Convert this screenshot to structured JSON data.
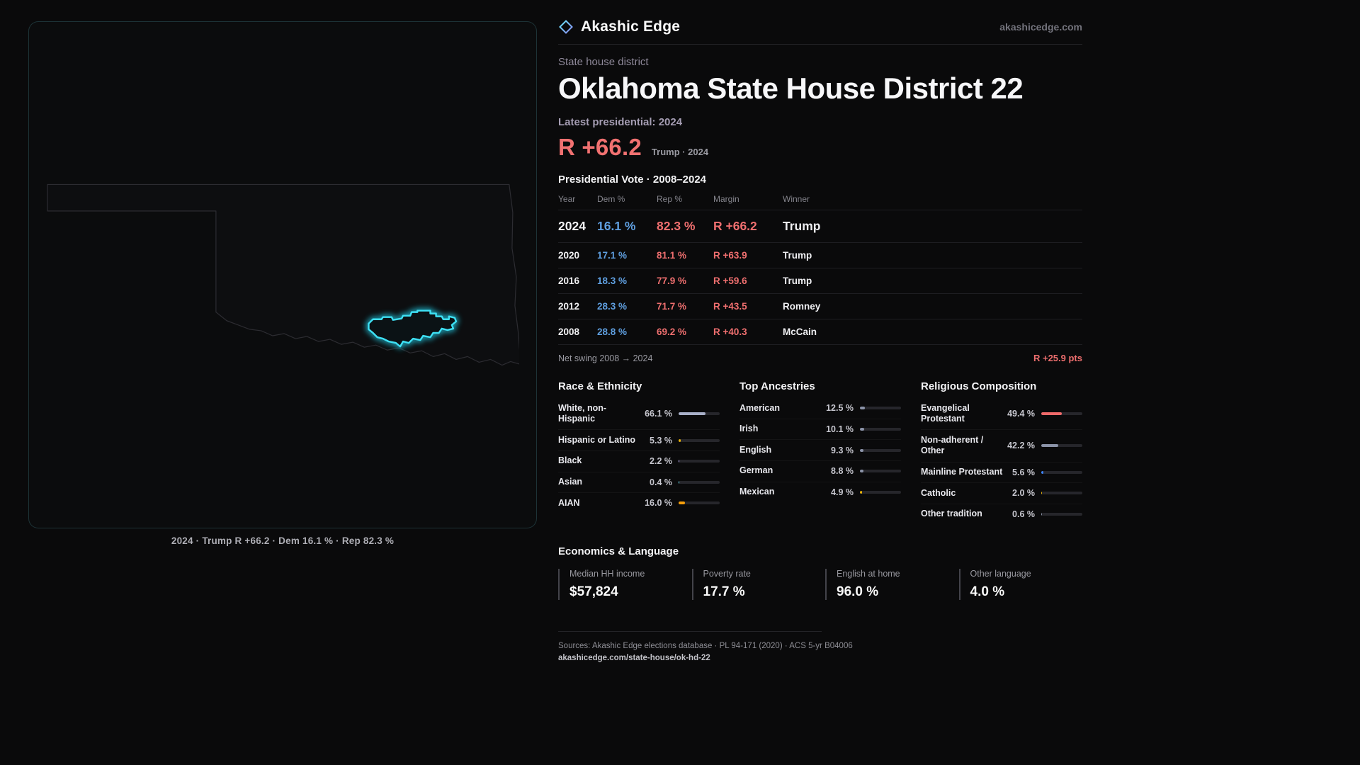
{
  "brand": {
    "name": "Akashic Edge",
    "domain": "akashicedge.com",
    "logo": "diamond-icon"
  },
  "page": {
    "eyebrow": "State house district",
    "title": "Oklahoma State House District 22",
    "latest_label": "Latest presidential: 2024",
    "headline_margin": "R +66.2",
    "headline_context": "Trump · 2024"
  },
  "map": {
    "caption": "2024 · Trump R +66.2 · Dem 16.1 % · Rep 82.3 %",
    "district_color": "#22d3ee"
  },
  "vote_table": {
    "title": "Presidential Vote · 2008–2024",
    "columns": [
      "Year",
      "Dem %",
      "Rep %",
      "Margin",
      "Winner"
    ],
    "rows": [
      {
        "year": "2024",
        "dem": "16.1 %",
        "rep": "82.3 %",
        "margin": "R +66.2",
        "winner": "Trump",
        "highlight": true
      },
      {
        "year": "2020",
        "dem": "17.1 %",
        "rep": "81.1 %",
        "margin": "R +63.9",
        "winner": "Trump"
      },
      {
        "year": "2016",
        "dem": "18.3 %",
        "rep": "77.9 %",
        "margin": "R +59.6",
        "winner": "Trump"
      },
      {
        "year": "2012",
        "dem": "28.3 %",
        "rep": "71.7 %",
        "margin": "R +43.5",
        "winner": "Romney"
      },
      {
        "year": "2008",
        "dem": "28.8 %",
        "rep": "69.2 %",
        "margin": "R +40.3",
        "winner": "McCain"
      }
    ],
    "net_swing_label": "Net swing 2008 → 2024",
    "net_swing_value": "R +25.9 pts"
  },
  "demographics": {
    "sections": [
      {
        "title": "Race & Ethnicity",
        "items": [
          {
            "label": "White, non-Hispanic",
            "value": "66.1 %",
            "pct": 66.1,
            "color": "#a8b0c8"
          },
          {
            "label": "Hispanic or Latino",
            "value": "5.3 %",
            "pct": 5.3,
            "color": "#eab308"
          },
          {
            "label": "Black",
            "value": "2.2 %",
            "pct": 2.2,
            "color": "#c4b5fd"
          },
          {
            "label": "Asian",
            "value": "0.4 %",
            "pct": 0.4,
            "color": "#67e8f9"
          },
          {
            "label": "AIAN",
            "value": "16.0 %",
            "pct": 16.0,
            "color": "#f59e0b"
          }
        ]
      },
      {
        "title": "Top Ancestries",
        "items": [
          {
            "label": "American",
            "value": "12.5 %",
            "pct": 12.5,
            "color": "#8b93a8"
          },
          {
            "label": "Irish",
            "value": "10.1 %",
            "pct": 10.1,
            "color": "#8b93a8"
          },
          {
            "label": "English",
            "value": "9.3 %",
            "pct": 9.3,
            "color": "#8b93a8"
          },
          {
            "label": "German",
            "value": "8.8 %",
            "pct": 8.8,
            "color": "#8b93a8"
          },
          {
            "label": "Mexican",
            "value": "4.9 %",
            "pct": 4.9,
            "color": "#eab308"
          }
        ]
      },
      {
        "title": "Religious Composition",
        "items": [
          {
            "label": "Evangelical Protestant",
            "value": "49.4 %",
            "pct": 49.4,
            "color": "#ef6a6a"
          },
          {
            "label": "Non-adherent / Other",
            "value": "42.2 %",
            "pct": 42.2,
            "color": "#8b93a8"
          },
          {
            "label": "Mainline Protestant",
            "value": "5.6 %",
            "pct": 5.6,
            "color": "#3b82f6"
          },
          {
            "label": "Catholic",
            "value": "2.0 %",
            "pct": 2.0,
            "color": "#eab308"
          },
          {
            "label": "Other tradition",
            "value": "0.6 %",
            "pct": 0.6,
            "color": "#8b93a8"
          }
        ]
      }
    ]
  },
  "economics": {
    "title": "Economics & Language",
    "stats": [
      {
        "label": "Median HH income",
        "value": "$57,824"
      },
      {
        "label": "Poverty rate",
        "value": "17.7 %"
      },
      {
        "label": "English at home",
        "value": "96.0 %"
      },
      {
        "label": "Other language",
        "value": "4.0 %"
      }
    ]
  },
  "footer": {
    "sources": "Sources: Akashic Edge elections database · PL 94-171 (2020) · ACS 5-yr B04006",
    "permalink": "akashicedge.com/state-house/ok-hd-22"
  }
}
